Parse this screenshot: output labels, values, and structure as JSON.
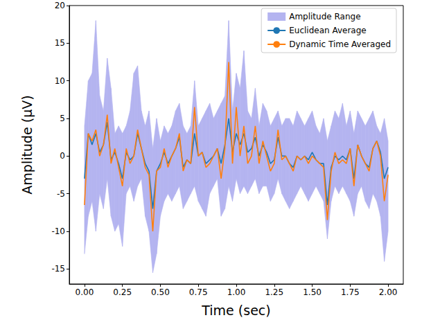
{
  "chart_data": {
    "type": "line",
    "xlabel": "Time (sec)",
    "ylabel": "Amplitude (μV)",
    "x": [
      0,
      0.025,
      0.05,
      0.075,
      0.1,
      0.125,
      0.15,
      0.175,
      0.2,
      0.225,
      0.25,
      0.275,
      0.3,
      0.325,
      0.35,
      0.375,
      0.4,
      0.425,
      0.45,
      0.475,
      0.5,
      0.525,
      0.55,
      0.575,
      0.6,
      0.625,
      0.65,
      0.675,
      0.7,
      0.725,
      0.75,
      0.775,
      0.8,
      0.825,
      0.85,
      0.875,
      0.9,
      0.925,
      0.95,
      0.975,
      1.0,
      1.025,
      1.05,
      1.075,
      1.1,
      1.125,
      1.15,
      1.175,
      1.2,
      1.225,
      1.25,
      1.275,
      1.3,
      1.325,
      1.35,
      1.375,
      1.4,
      1.425,
      1.45,
      1.475,
      1.5,
      1.525,
      1.55,
      1.575,
      1.6,
      1.625,
      1.65,
      1.675,
      1.7,
      1.725,
      1.75,
      1.775,
      1.8,
      1.825,
      1.85,
      1.875,
      1.9,
      1.925,
      1.95,
      1.975,
      2.0
    ],
    "series": [
      {
        "name": "Amplitude Range",
        "type": "band",
        "color": "#b4b4f0",
        "lower": [
          -13,
          -8,
          -6,
          -10,
          -5,
          -7,
          -3,
          -8,
          -10,
          -9,
          -12,
          -5,
          -4,
          -6,
          -4,
          -3,
          -8,
          -10,
          -15.5,
          -13,
          -8,
          -6,
          -5,
          -6,
          -5,
          -4,
          -7,
          -6,
          -5,
          -4,
          -6,
          -7,
          -8,
          -5,
          -4,
          -3,
          -8,
          -7,
          -4,
          -6,
          -3,
          -5,
          -4,
          -5,
          -4,
          -3,
          -5,
          -4,
          -4,
          -6,
          -5,
          -3,
          -5,
          -6,
          -7,
          -6,
          -5,
          -4,
          -5,
          -6,
          -5,
          -4,
          -5,
          -6,
          -11,
          -6,
          -4,
          -5,
          -4,
          -5,
          -6,
          -8,
          -5,
          -4,
          -6,
          -7,
          -5,
          -6,
          -8,
          -14,
          -10
        ],
        "upper": [
          4,
          10,
          11,
          18,
          8,
          6,
          13,
          9,
          3,
          4,
          3,
          4,
          6,
          11,
          12,
          6,
          4,
          6,
          1,
          5,
          2,
          4,
          3,
          4,
          6,
          7,
          4,
          3,
          4,
          10,
          4,
          5,
          6,
          7,
          5,
          6,
          7,
          8,
          18,
          6,
          11,
          9,
          14,
          6,
          5,
          9,
          4,
          7,
          6,
          4,
          5,
          6,
          4,
          5,
          5,
          4,
          6,
          5,
          4,
          5,
          6,
          4,
          3,
          5,
          2,
          4,
          6,
          5,
          7,
          4,
          6,
          3,
          6,
          5,
          4,
          5,
          6,
          4,
          3,
          5,
          2
        ]
      },
      {
        "name": "Euclidean Average",
        "type": "line",
        "color": "#1f77b4",
        "values": [
          -3,
          3,
          1.5,
          3,
          0.5,
          1.5,
          4.5,
          -0.5,
          0.5,
          -1,
          -3,
          0.5,
          -0.5,
          0,
          3,
          1,
          -1,
          -2,
          -7,
          -2,
          -1,
          0.5,
          -1,
          0,
          1,
          2.5,
          -1.5,
          -0.5,
          -1,
          3,
          0,
          0.5,
          -1,
          -0.5,
          0,
          1,
          -1,
          1.5,
          5,
          0.5,
          3,
          1.5,
          3,
          0.5,
          1,
          2.5,
          0,
          1.5,
          0.5,
          -1,
          -0.5,
          2.5,
          0,
          0,
          -1,
          -1.5,
          0,
          -0.5,
          0,
          -0.5,
          0.5,
          -0.5,
          -1,
          -1,
          -6.5,
          -1.5,
          0,
          -0.5,
          0,
          -0.5,
          1,
          -3,
          1.5,
          0,
          -1,
          -1.5,
          1,
          2,
          0.5,
          -3,
          -1.5
        ]
      },
      {
        "name": "Dynamic Time Averaged",
        "type": "line",
        "color": "#ff7f0e",
        "values": [
          -6.5,
          3,
          2,
          3.5,
          0,
          1.5,
          5.5,
          -1,
          1,
          -1.5,
          -4,
          1,
          -1,
          0,
          3.5,
          1,
          -1.5,
          -2.5,
          -10,
          -2,
          -1.5,
          1,
          -1.5,
          0,
          1,
          3,
          -2,
          -0.5,
          -1,
          6.5,
          0,
          0.5,
          -1.5,
          -1,
          0,
          1,
          -3,
          1,
          12.5,
          -1,
          6.5,
          0,
          4,
          -1,
          0,
          4,
          -1,
          2,
          0,
          -2,
          -1,
          3.5,
          -0.5,
          0,
          -1,
          -2,
          0,
          -0.5,
          0,
          -1,
          0,
          -0.5,
          -1,
          -1.5,
          -8.5,
          -2,
          0.5,
          -1,
          -0.5,
          -1,
          1,
          -4,
          1.5,
          0,
          -1,
          -2,
          1,
          2,
          0,
          -6,
          -2.5
        ]
      }
    ],
    "xlim": [
      -0.1,
      2.1
    ],
    "ylim": [
      -17,
      20
    ],
    "xticks": [
      {
        "value": 0,
        "label": "0.00"
      },
      {
        "value": 0.25,
        "label": "0.25"
      },
      {
        "value": 0.5,
        "label": "0.50"
      },
      {
        "value": 0.75,
        "label": "0.75"
      },
      {
        "value": 1,
        "label": "1.00"
      },
      {
        "value": 1.25,
        "label": "1.25"
      },
      {
        "value": 1.5,
        "label": "1.50"
      },
      {
        "value": 1.75,
        "label": "1.75"
      },
      {
        "value": 2,
        "label": "2.00"
      }
    ],
    "yticks": [
      -15,
      -10,
      -5,
      0,
      5,
      10,
      15,
      20
    ],
    "legend": "upper right",
    "grid": false
  }
}
